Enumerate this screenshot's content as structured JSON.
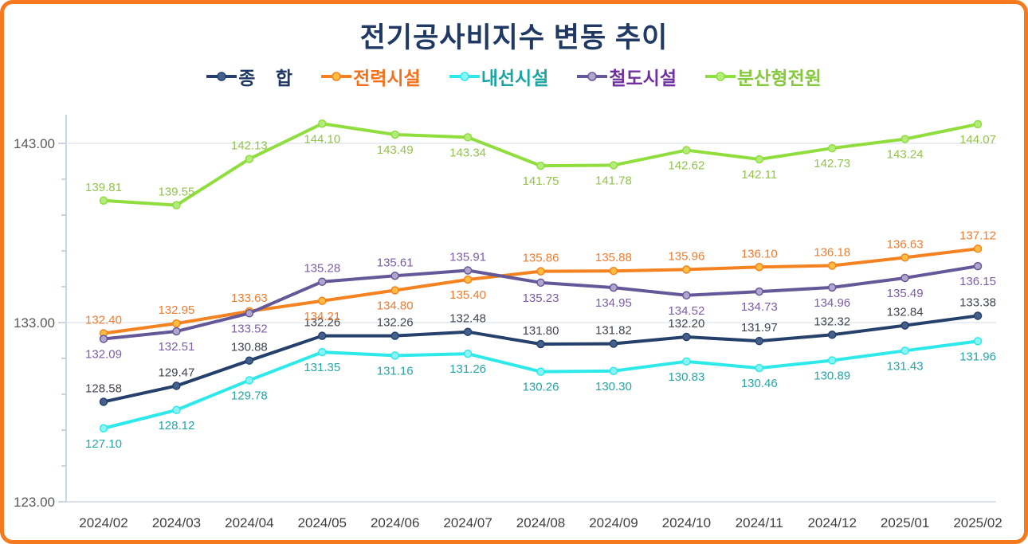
{
  "frame": {
    "border_color": "#F4791F",
    "background_color": "#FFFFFF"
  },
  "title": {
    "text": "전기공사비지수 변동 추이",
    "color": "#1F3864"
  },
  "chart_data": {
    "type": "line",
    "title": "전기공사비지수 변동 추이",
    "legend_position": "top",
    "grid": "horizontal-major",
    "x": [
      "2024/02",
      "2024/03",
      "2024/04",
      "2024/05",
      "2024/06",
      "2024/07",
      "2024/08",
      "2024/09",
      "2024/10",
      "2024/11",
      "2024/12",
      "2025/01",
      "2025/02"
    ],
    "yaxis": {
      "min": 123,
      "max": 145,
      "major_ticks": [
        143,
        133,
        123
      ],
      "minor_step": 2,
      "tick_label_color": "#595959",
      "axis_color": "#B9C7DE",
      "grid_color": "#E3E7EE",
      "baseline_color": "#D0D7E2"
    },
    "series": [
      {
        "name": "종    합",
        "line_color": "#24406B",
        "marker_fill": "#44618E",
        "label_color": "#3F4450",
        "legend_color": "#1F3864",
        "values": [
          128.58,
          129.47,
          130.88,
          132.26,
          132.26,
          132.48,
          131.8,
          131.82,
          132.2,
          131.97,
          132.32,
          132.84,
          133.38
        ],
        "label_sides": [
          "above",
          "above",
          "above",
          "above",
          "above",
          "above",
          "above",
          "above",
          "above",
          "above",
          "above",
          "above",
          "above"
        ]
      },
      {
        "name": "전력시설",
        "line_color": "#F58220",
        "marker_fill": "#FFBE42",
        "label_color": "#ED7D31",
        "legend_color": "#F4701B",
        "values": [
          132.4,
          132.95,
          133.63,
          134.21,
          134.8,
          135.4,
          135.86,
          135.88,
          135.96,
          136.1,
          136.18,
          136.63,
          137.12
        ],
        "label_sides": [
          "above",
          "above",
          "above",
          "below",
          "below",
          "below",
          "above",
          "above",
          "above",
          "above",
          "above",
          "above",
          "above"
        ]
      },
      {
        "name": "내선시설",
        "line_color": "#2EE9E9",
        "marker_fill": "#8CF4F4",
        "label_color": "#27A5A5",
        "legend_color": "#1AA5A5",
        "values": [
          127.1,
          128.12,
          129.78,
          131.35,
          131.16,
          131.26,
          130.26,
          130.3,
          130.83,
          130.46,
          130.89,
          131.43,
          131.96
        ],
        "label_sides": [
          "below",
          "below",
          "below",
          "below",
          "below",
          "below",
          "below",
          "below",
          "below",
          "below",
          "below",
          "below",
          "below"
        ]
      },
      {
        "name": "철도시설",
        "line_color": "#655898",
        "marker_fill": "#B3A6CE",
        "label_color": "#7B5EA7",
        "legend_color": "#7030A0",
        "values": [
          132.09,
          132.51,
          133.52,
          135.28,
          135.61,
          135.91,
          135.23,
          134.95,
          134.52,
          134.73,
          134.96,
          135.49,
          136.15
        ],
        "label_sides": [
          "below",
          "below",
          "below",
          "above",
          "above",
          "above",
          "below",
          "below",
          "below",
          "below",
          "below",
          "below",
          "below"
        ]
      },
      {
        "name": "분산형전원",
        "line_color": "#8FDE3E",
        "marker_fill": "#B4EC7C",
        "label_color": "#93C34D",
        "legend_color": "#86C940",
        "values": [
          139.81,
          139.55,
          142.13,
          144.1,
          143.49,
          143.34,
          141.75,
          141.78,
          142.62,
          142.11,
          142.73,
          143.24,
          144.07
        ],
        "label_sides": [
          "above",
          "above",
          "above",
          "below",
          "below",
          "below",
          "below",
          "below",
          "below",
          "below",
          "below",
          "below",
          "below"
        ]
      }
    ]
  }
}
